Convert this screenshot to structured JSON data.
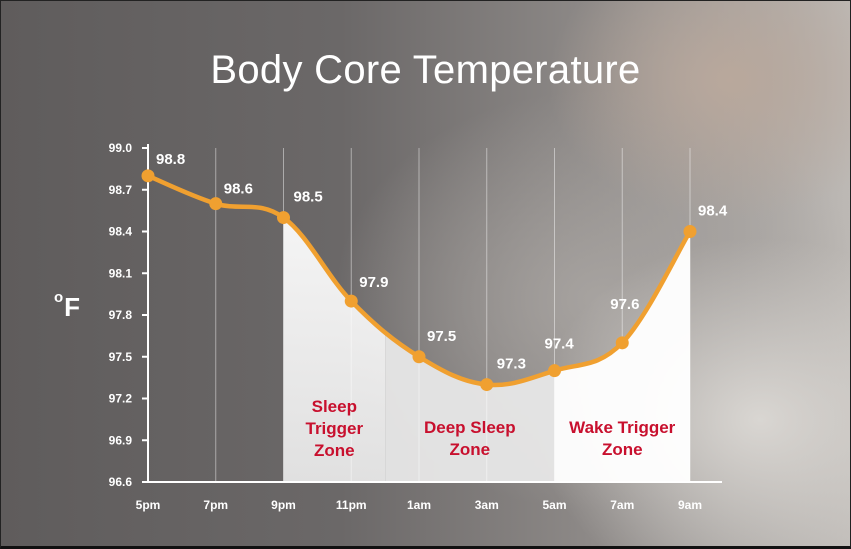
{
  "chart_data": {
    "type": "line",
    "title": "Body Core Temperature",
    "ylabel_symbol": "o",
    "ylabel_unit": "F",
    "x": [
      "5pm",
      "7pm",
      "9pm",
      "11pm",
      "1am",
      "3am",
      "5am",
      "7am",
      "9am"
    ],
    "values": [
      98.8,
      98.6,
      98.5,
      97.9,
      97.5,
      97.3,
      97.4,
      97.6,
      98.4
    ],
    "value_labels": [
      "98.8",
      "98.6",
      "98.5",
      "97.9",
      "97.5",
      "97.3",
      "97.4",
      "97.6",
      "98.4"
    ],
    "yticks": [
      "99.0",
      "98.7",
      "98.4",
      "98.1",
      "97.8",
      "97.5",
      "97.2",
      "96.9",
      "96.6"
    ],
    "ytick_values": [
      99.0,
      98.7,
      98.4,
      98.1,
      97.8,
      97.5,
      97.2,
      96.9,
      96.6
    ],
    "ylim": [
      96.6,
      99.0
    ],
    "grid": "vertical",
    "zones": [
      {
        "lines": [
          "Sleep",
          "Trigger",
          "Zone"
        ],
        "from_index": 2,
        "to_index": 3.5
      },
      {
        "lines": [
          "Deep Sleep",
          "Zone"
        ],
        "from_index": 3.5,
        "to_index": 6
      },
      {
        "lines": [
          "Wake Trigger",
          "Zone"
        ],
        "from_index": 6,
        "to_index": 8
      }
    ],
    "colors": {
      "line": "#f0a030",
      "zone_text": "#c8102e",
      "axis": "#ffffff",
      "zone_fill": "#ffffff"
    }
  }
}
